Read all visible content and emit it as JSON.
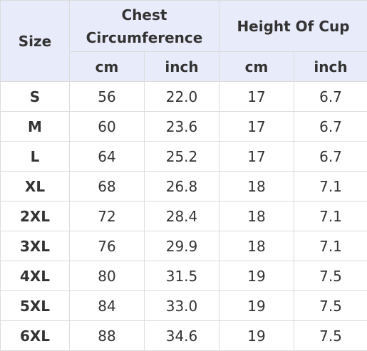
{
  "table": {
    "header": {
      "size": "Size",
      "chest": "Chest Circumference",
      "cup": "Height Of Cup",
      "units": [
        "cm",
        "inch",
        "cm",
        "inch"
      ]
    },
    "rows": [
      [
        "S",
        "56",
        "22.0",
        "17",
        "6.7"
      ],
      [
        "M",
        "60",
        "23.6",
        "17",
        "6.7"
      ],
      [
        "L",
        "64",
        "25.2",
        "17",
        "6.7"
      ],
      [
        "XL",
        "68",
        "26.8",
        "18",
        "7.1"
      ],
      [
        "2XL",
        "72",
        "28.4",
        "18",
        "7.1"
      ],
      [
        "3XL",
        "76",
        "29.9",
        "18",
        "7.1"
      ],
      [
        "4XL",
        "80",
        "31.5",
        "19",
        "7.5"
      ],
      [
        "5XL",
        "84",
        "33.0",
        "19",
        "7.5"
      ],
      [
        "6XL",
        "88",
        "34.6",
        "19",
        "7.5"
      ]
    ]
  }
}
